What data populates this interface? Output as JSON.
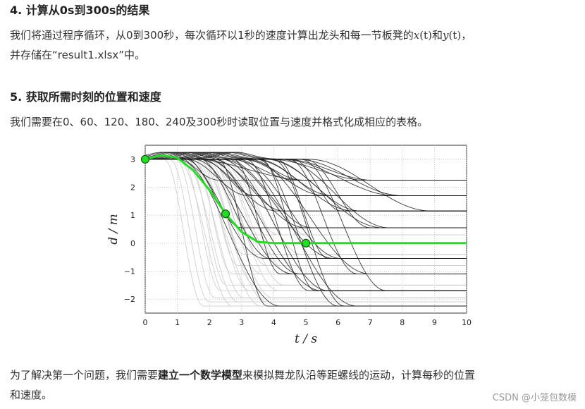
{
  "section4": {
    "heading": "4. 计算从0s到300s的结果",
    "para_a": "我们将通过程序循环，从0到300秒，每次循环以1秒的速度计算出龙头和每一节板凳的",
    "math_x": "x",
    "math_paren_t": "(t)",
    "and": "和",
    "math_y": "y",
    "para_b": "，",
    "para_line2": "并存储在“result1.xlsx”中。"
  },
  "section5": {
    "heading": "5. 获取所需时刻的位置和速度",
    "para": "我们需要在0、60、120、180、240及300秒时读取位置与速度并格式化成相应的表格。"
  },
  "closing": {
    "text_a": "为了解决第一个问题，我们需要",
    "bold": "建立一个数学模型",
    "text_b": "来模拟舞龙队沿等距螺线的运动，计算每秒的位置",
    "line2": "和速度。"
  },
  "watermark": "CSDN @小笼包数模",
  "chart_data": {
    "type": "line",
    "xlabel": "t / s",
    "ylabel": "d / m",
    "xlim": [
      0,
      10
    ],
    "ylim": [
      -2.5,
      3.5
    ],
    "x_ticks": [
      0,
      1,
      2,
      3,
      4,
      5,
      6,
      7,
      8,
      9,
      10
    ],
    "y_ticks": [
      -2,
      -1,
      0,
      1,
      2,
      3
    ],
    "grid": true,
    "highlight_color": "#22dd22",
    "highlight_series": {
      "x": [
        0,
        0.5,
        1,
        1.5,
        2,
        2.5,
        3,
        3.5,
        4,
        4.5,
        5,
        6,
        7,
        8,
        9,
        10
      ],
      "values": [
        3.0,
        3.15,
        3.05,
        2.6,
        1.9,
        1.05,
        0.4,
        0.05,
        0.0,
        0.0,
        0.0,
        0.0,
        0.0,
        0.0,
        0.0,
        0.0
      ]
    },
    "highlight_points": [
      {
        "x": 0,
        "y": 3.0
      },
      {
        "x": 2.5,
        "y": 1.05
      },
      {
        "x": 5,
        "y": 0.0
      }
    ],
    "black_curves_final_values": [
      2.25,
      1.7,
      1.15,
      0.55,
      -0.55,
      -1.1,
      -1.7,
      -2.25
    ],
    "gray_curves_final_values": [
      -2.25,
      -2.1,
      -1.95,
      -1.7,
      -1.5,
      -1.1,
      -0.8,
      -0.4,
      0.3
    ]
  }
}
